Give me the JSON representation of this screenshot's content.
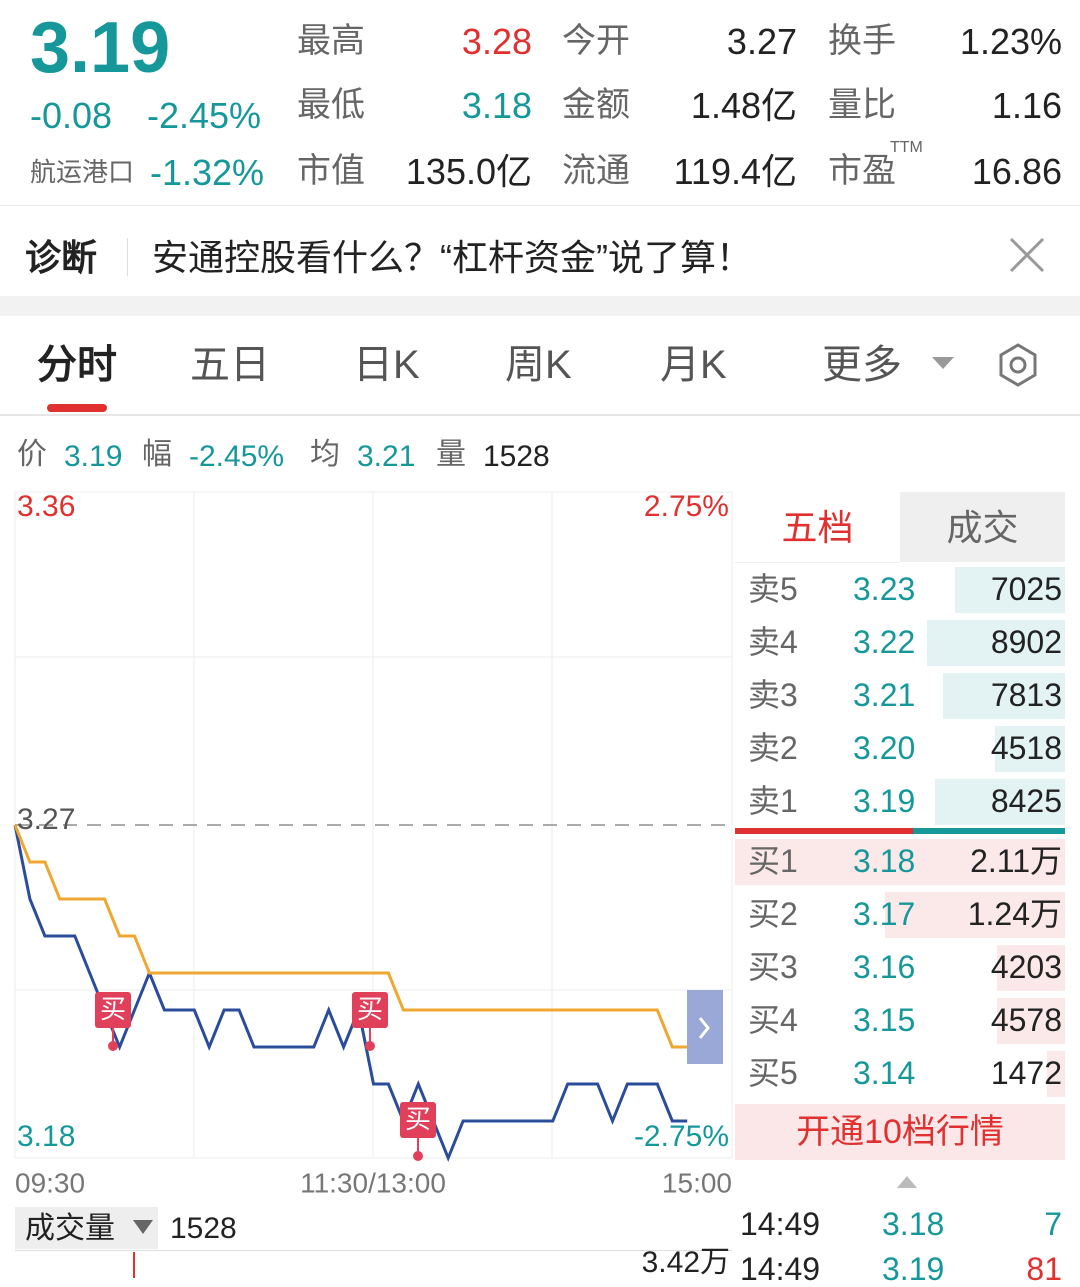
{
  "quote": {
    "price": "3.19",
    "change": "-0.08",
    "change_pct": "-2.45%",
    "sector": "航运港口",
    "sector_pct": "-1.32%"
  },
  "stats": [
    {
      "label": "最高",
      "value": "3.28"
    },
    {
      "label": "今开",
      "value": "3.27"
    },
    {
      "label": "换手",
      "value": "1.23%"
    },
    {
      "label": "最低",
      "value": "3.18"
    },
    {
      "label": "金额",
      "value": "1.48亿"
    },
    {
      "label": "量比",
      "value": "1.16"
    },
    {
      "label": "市值",
      "value": "135.0亿"
    },
    {
      "label": "流通",
      "value": "119.4亿"
    },
    {
      "label": "市盈",
      "value": "16.86",
      "sup": "TTM"
    }
  ],
  "diagnosis": {
    "label": "诊断",
    "text": "安通控股看什么？“杠杆资金”说了算！"
  },
  "tabs": [
    "分时",
    "五日",
    "日K",
    "周K",
    "月K",
    "更多"
  ],
  "info": [
    {
      "label": "价",
      "value": "3.19"
    },
    {
      "label": "幅",
      "value": "-2.45%"
    },
    {
      "label": "均",
      "value": "3.21"
    },
    {
      "label": "量",
      "value": "1528"
    }
  ],
  "chart_data": {
    "type": "line",
    "ylim": [
      3.18,
      3.36
    ],
    "yticks": [
      3.36,
      3.27,
      3.18
    ],
    "pct_labels": [
      "2.75%",
      "-2.75%"
    ],
    "x_labels": [
      "09:30",
      "11:30/13:00",
      "15:00"
    ],
    "series": [
      {
        "color": "#2b4c9b",
        "values": [
          3.27,
          3.25,
          3.24,
          3.24,
          3.24,
          3.23,
          3.22,
          3.21,
          3.22,
          3.23,
          3.22,
          3.22,
          3.22,
          3.21,
          3.22,
          3.22,
          3.21,
          3.21,
          3.21,
          3.21,
          3.21,
          3.22,
          3.21,
          3.22,
          3.2,
          3.2,
          3.19,
          3.2,
          3.19,
          3.18,
          3.19,
          3.19,
          3.19,
          3.19,
          3.19,
          3.19,
          3.19,
          3.2,
          3.2,
          3.2,
          3.19,
          3.2,
          3.2,
          3.2,
          3.19,
          3.19,
          null,
          null,
          null
        ]
      },
      {
        "color": "#f0a732",
        "values": [
          3.27,
          3.26,
          3.26,
          3.25,
          3.25,
          3.25,
          3.25,
          3.24,
          3.24,
          3.23,
          3.23,
          3.23,
          3.23,
          3.23,
          3.23,
          3.23,
          3.23,
          3.23,
          3.23,
          3.23,
          3.23,
          3.23,
          3.23,
          3.23,
          3.23,
          3.23,
          3.22,
          3.22,
          3.22,
          3.22,
          3.22,
          3.22,
          3.22,
          3.22,
          3.22,
          3.22,
          3.22,
          3.22,
          3.22,
          3.22,
          3.22,
          3.22,
          3.22,
          3.22,
          3.21,
          3.21,
          null,
          null,
          null
        ]
      }
    ],
    "buy_markers": [
      "买",
      "买",
      "买"
    ]
  },
  "book": {
    "tabs": [
      "五档",
      "成交"
    ],
    "asks": [
      [
        "卖5",
        "3.23",
        "7025"
      ],
      [
        "卖4",
        "3.22",
        "8902"
      ],
      [
        "卖3",
        "3.21",
        "7813"
      ],
      [
        "卖2",
        "3.20",
        "4518"
      ],
      [
        "卖1",
        "3.19",
        "8425"
      ]
    ],
    "bids": [
      [
        "买1",
        "3.18",
        "2.11万"
      ],
      [
        "买2",
        "3.17",
        "1.24万"
      ],
      [
        "买3",
        "3.16",
        "4203"
      ],
      [
        "买4",
        "3.15",
        "4578"
      ],
      [
        "买5",
        "3.14",
        "1472"
      ]
    ],
    "button": "开通10档行情"
  },
  "volume": {
    "label": "成交量",
    "value": "1528",
    "max": "3.42万"
  },
  "trades": [
    [
      "14:49",
      "3.18",
      "7"
    ],
    [
      "14:49",
      "3.19",
      "81"
    ]
  ]
}
